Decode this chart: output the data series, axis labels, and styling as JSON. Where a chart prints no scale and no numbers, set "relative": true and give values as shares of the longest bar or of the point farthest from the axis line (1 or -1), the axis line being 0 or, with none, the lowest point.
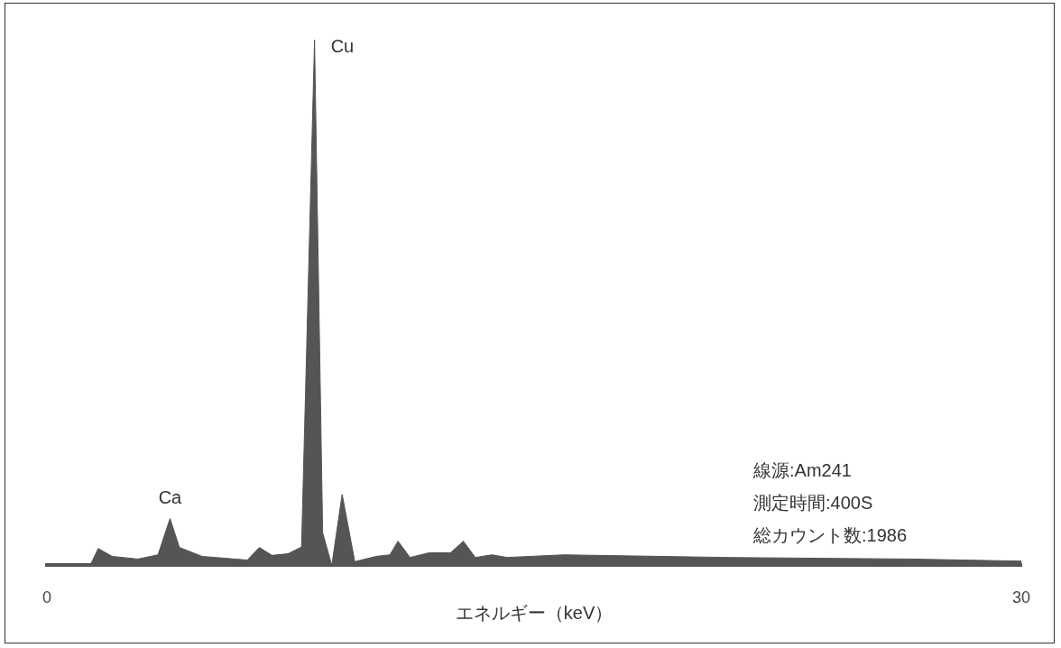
{
  "chart_data": {
    "type": "area",
    "xlabel": "エネルギー（keV）",
    "relative": true,
    "color": "#555555",
    "x": [
      0.23,
      1.33,
      1.58,
      2.01,
      2.8,
      3.42,
      3.79,
      4.08,
      4.78,
      6.17,
      6.54,
      6.93,
      7.42,
      7.84,
      8.24,
      8.49,
      8.77,
      9.09,
      9.48,
      10.13,
      10.56,
      10.81,
      11.18,
      11.77,
      12.43,
      12.82,
      13.19,
      13.7,
      14.18,
      15.91,
      20.89,
      26.55,
      30
    ],
    "values": [
      0,
      0,
      0.032,
      0.017,
      0.012,
      0.02,
      0.089,
      0.034,
      0.017,
      0.01,
      0.034,
      0.019,
      0.022,
      0.035,
      1,
      0.062,
      0,
      0.135,
      0.007,
      0.017,
      0.02,
      0.046,
      0.015,
      0.024,
      0.024,
      0.046,
      0.015,
      0.02,
      0.015,
      0.02,
      0.015,
      0.012,
      0.008
    ],
    "xlim": [
      0,
      30
    ],
    "xticks": [
      0,
      30
    ],
    "annotations": [
      {
        "text": "Cu",
        "x": 8.24,
        "y": 1
      },
      {
        "text": "Ca",
        "x": 3.79,
        "y": 0.089
      },
      "線源:Am241",
      "測定時間:400S",
      "総カウント数:1986"
    ]
  }
}
